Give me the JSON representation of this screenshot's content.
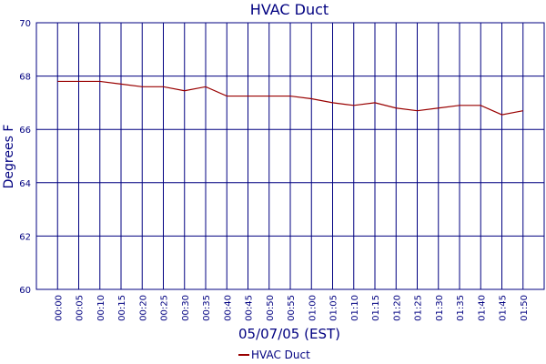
{
  "chart_data": {
    "type": "line",
    "title": "HVAC Duct",
    "x_label": "05/07/05 (EST)",
    "y_label": "Degrees F",
    "categories": [
      "00:00",
      "00:05",
      "00:10",
      "00:15",
      "00:20",
      "00:25",
      "00:30",
      "00:35",
      "00:40",
      "00:45",
      "00:50",
      "00:55",
      "01:00",
      "01:05",
      "01:10",
      "01:15",
      "01:20",
      "01:25",
      "01:30",
      "01:35",
      "01:40",
      "01:45",
      "01:50"
    ],
    "series": [
      {
        "name": "HVAC Duct",
        "color": "#990000",
        "values": [
          67.8,
          67.8,
          67.8,
          67.7,
          67.6,
          67.6,
          67.45,
          67.6,
          67.25,
          67.25,
          67.25,
          67.25,
          67.15,
          67.0,
          66.9,
          67.0,
          66.8,
          66.7,
          66.8,
          66.9,
          66.9,
          66.55,
          66.7
        ]
      }
    ],
    "ylim": [
      60,
      70
    ],
    "yticks": [
      60,
      62,
      64,
      66,
      68,
      70
    ],
    "grid": true,
    "grid_color": "#000080",
    "legend": "bottom"
  }
}
